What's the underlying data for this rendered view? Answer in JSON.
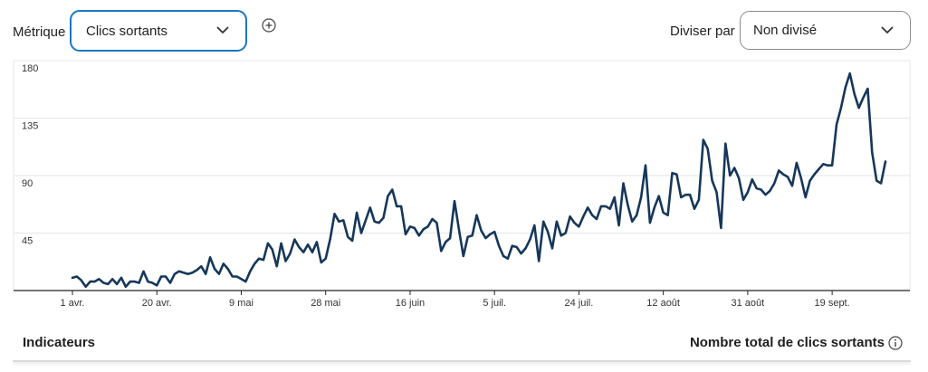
{
  "toolbar": {
    "metric_label": "Métrique",
    "metric_value": "Clics sortants",
    "add_icon": "plus-circle-icon",
    "split_label": "Diviser par",
    "split_value": "Non divisé",
    "dropdown_icon": "chevron-down-icon",
    "accent_color": "#1a78c2"
  },
  "footer": {
    "left_title": "Indicateurs",
    "right_title": "Nombre total de clics sortants",
    "info_icon": "info-circle-icon"
  },
  "chart_data": {
    "type": "line",
    "title": "",
    "xlabel": "",
    "ylabel": "",
    "ylim": [
      0,
      180
    ],
    "yticks": [
      "180",
      "135",
      "90",
      "45"
    ],
    "xticks": [
      "1 avr.",
      "20 avr.",
      "9 mai",
      "28 mai",
      "16 juin",
      "5 juil.",
      "24 juil.",
      "12 août",
      "31 août",
      "19 sept."
    ],
    "grid": true,
    "line_color": "#16375a",
    "series": [
      {
        "values": [
          10,
          11,
          8,
          3,
          7,
          7,
          9,
          6,
          5,
          9,
          5,
          10,
          3,
          7,
          7,
          6,
          15,
          7,
          6,
          4,
          11,
          11,
          6,
          13,
          15,
          14,
          13,
          14,
          16,
          19,
          13,
          26,
          17,
          13,
          21,
          17,
          11,
          11,
          9,
          7,
          15,
          21,
          25,
          24,
          37,
          32,
          19,
          37,
          23,
          29,
          40,
          34,
          30,
          36,
          30,
          38,
          22,
          25,
          40,
          60,
          54,
          55,
          42,
          39,
          61,
          45,
          55,
          65,
          54,
          53,
          57,
          74,
          79,
          66,
          66,
          44,
          50,
          49,
          43,
          48,
          50,
          56,
          53,
          31,
          38,
          41,
          70,
          48,
          27,
          42,
          43,
          59,
          47,
          41,
          44,
          46,
          35,
          27,
          25,
          35,
          34,
          29,
          33,
          40,
          51,
          23,
          54,
          46,
          33,
          54,
          43,
          45,
          58,
          53,
          50,
          58,
          65,
          59,
          56,
          66,
          66,
          64,
          73,
          51,
          84,
          67,
          54,
          59,
          73,
          98,
          53,
          65,
          74,
          61,
          59,
          92,
          91,
          73,
          75,
          75,
          64,
          71,
          118,
          111,
          86,
          77,
          49,
          115,
          90,
          96,
          88,
          71,
          77,
          87,
          80,
          79,
          75,
          78,
          84,
          94,
          91,
          89,
          82,
          100,
          88,
          73,
          86,
          91,
          95,
          99,
          98,
          98,
          130,
          143,
          159,
          170,
          154,
          143,
          151,
          158,
          108,
          86,
          84,
          101
        ]
      }
    ]
  }
}
